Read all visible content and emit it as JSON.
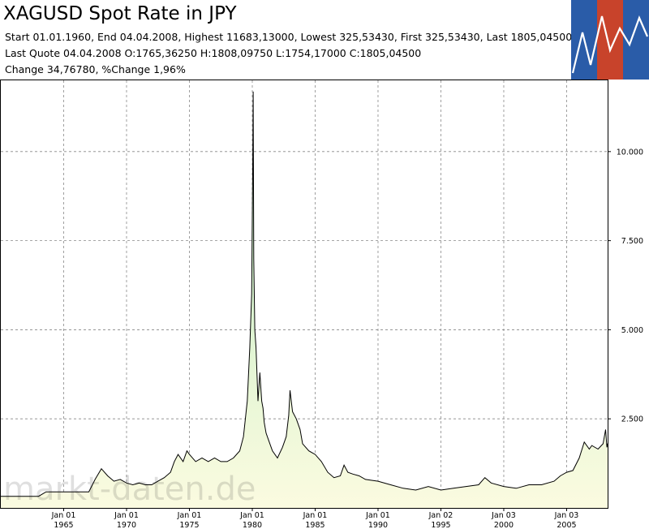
{
  "header": {
    "title": "XAGUSD Spot Rate in JPY",
    "line1": "Start 01.01.1960, End 04.04.2008, Highest 11683,13000, Lowest 325,53430, First 325,53430, Last 1805,04500",
    "line2": "Last Quote 04.04.2008 O:1765,36250 H:1808,09750 L:1754,17000 C:1805,04500",
    "line3": "Change 34,76780, %Change 1,96%"
  },
  "logo": {
    "colors": [
      "#2a5ca8",
      "#c8432b",
      "#2a5ca8"
    ],
    "icon": "rising-line-logo-icon"
  },
  "watermark": "markt-daten.de",
  "colors": {
    "line": "#000000",
    "fill_top": "#b9ecc0",
    "fill_bottom": "#fbfbe0",
    "grid": "#888888"
  },
  "chart_data": {
    "type": "area",
    "title": "XAGUSD Spot Rate in JPY",
    "xlabel": "",
    "ylabel": "",
    "xlim": [
      1960.0,
      2008.26
    ],
    "ylim": [
      0,
      12000
    ],
    "grid": true,
    "y_axis_side": "right",
    "y_ticks": [
      {
        "value": 2500,
        "label": "2.500"
      },
      {
        "value": 5000,
        "label": "5.000"
      },
      {
        "value": 7500,
        "label": "7.500"
      },
      {
        "value": 10000,
        "label": "10.000"
      }
    ],
    "x_ticks": [
      {
        "value": 1965,
        "line1": "Jan 01",
        "line2": "1965"
      },
      {
        "value": 1970,
        "line1": "Jan 01",
        "line2": "1970"
      },
      {
        "value": 1975,
        "line1": "Jan 01",
        "line2": "1975"
      },
      {
        "value": 1980,
        "line1": "Jan 01",
        "line2": "1980"
      },
      {
        "value": 1985,
        "line1": "Jan 01",
        "line2": "1985"
      },
      {
        "value": 1990,
        "line1": "Jan 01",
        "line2": "1990"
      },
      {
        "value": 1995,
        "line1": "Jan 02",
        "line2": "1995"
      },
      {
        "value": 2000,
        "line1": "Jan 03",
        "line2": "2000"
      },
      {
        "value": 2005,
        "line1": "Jan 03",
        "line2": "2005"
      }
    ],
    "x": [
      1960.0,
      1963.0,
      1963.6,
      1967.0,
      1967.5,
      1968.0,
      1968.5,
      1969.0,
      1969.5,
      1970.0,
      1970.5,
      1971.0,
      1971.5,
      1972.0,
      1972.5,
      1973.0,
      1973.5,
      1973.8,
      1974.1,
      1974.5,
      1974.8,
      1975.0,
      1975.5,
      1976.0,
      1976.5,
      1977.0,
      1977.5,
      1978.0,
      1978.5,
      1979.0,
      1979.3,
      1979.6,
      1979.8,
      1979.95,
      1980.03,
      1980.07,
      1980.12,
      1980.2,
      1980.3,
      1980.45,
      1980.6,
      1980.75,
      1980.85,
      1980.95,
      1981.1,
      1981.3,
      1981.6,
      1982.0,
      1982.4,
      1982.7,
      1982.9,
      1983.0,
      1983.2,
      1983.5,
      1983.8,
      1984.0,
      1984.5,
      1985.0,
      1985.5,
      1986.0,
      1986.5,
      1987.0,
      1987.3,
      1987.6,
      1988.0,
      1988.5,
      1989.0,
      1990.0,
      1991.0,
      1992.0,
      1993.0,
      1994.0,
      1995.0,
      1996.0,
      1997.0,
      1998.0,
      1998.5,
      1999.0,
      2000.0,
      2001.0,
      2002.0,
      2003.0,
      2004.0,
      2004.5,
      2005.0,
      2005.5,
      2006.0,
      2006.4,
      2006.8,
      2007.0,
      2007.5,
      2007.9,
      2008.1,
      2008.2,
      2008.26
    ],
    "values": [
      326,
      326,
      450,
      450,
      800,
      1100,
      900,
      750,
      800,
      700,
      650,
      700,
      650,
      650,
      750,
      850,
      1000,
      1300,
      1500,
      1300,
      1600,
      1500,
      1300,
      1400,
      1300,
      1400,
      1300,
      1300,
      1400,
      1600,
      2000,
      3000,
      4500,
      6000,
      9500,
      11683,
      7000,
      5000,
      4500,
      3000,
      3800,
      3000,
      2800,
      2400,
      2100,
      1900,
      1600,
      1400,
      1700,
      2000,
      2600,
      3300,
      2700,
      2500,
      2200,
      1800,
      1600,
      1500,
      1300,
      1000,
      850,
      900,
      1200,
      1000,
      950,
      900,
      800,
      750,
      650,
      550,
      500,
      600,
      500,
      550,
      600,
      650,
      850,
      700,
      600,
      550,
      650,
      650,
      750,
      900,
      1000,
      1050,
      1400,
      1850,
      1650,
      1750,
      1650,
      1800,
      2200,
      1700,
      1805
    ]
  }
}
